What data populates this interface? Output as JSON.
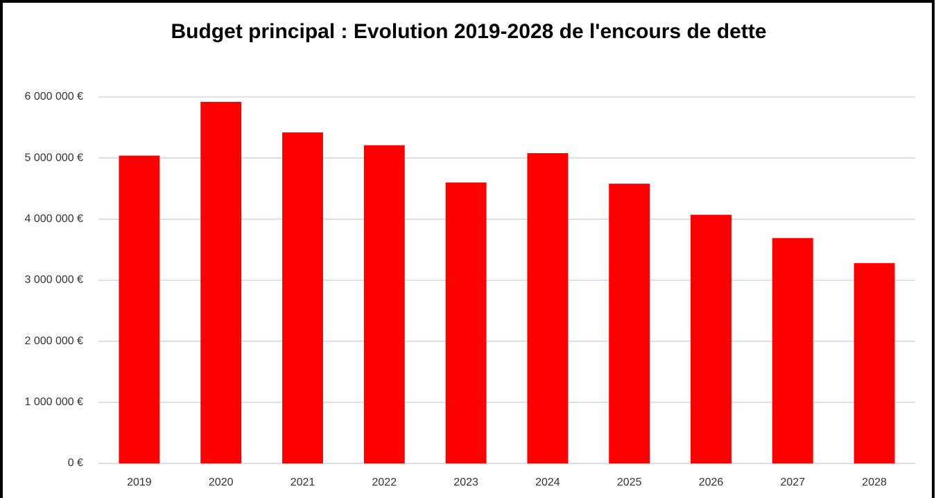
{
  "chart_data": {
    "type": "bar",
    "title": "Budget principal : Evolution 2019-2028 de l'encours de dette",
    "categories": [
      "2019",
      "2020",
      "2021",
      "2022",
      "2023",
      "2024",
      "2025",
      "2026",
      "2027",
      "2028"
    ],
    "values": [
      5040000,
      5920000,
      5420000,
      5210000,
      4600000,
      5080000,
      4580000,
      4070000,
      3690000,
      3280000
    ],
    "color": "#ff0000",
    "ylim": [
      0,
      6000000
    ],
    "yticks": [
      {
        "value": 0,
        "label": "0 €"
      },
      {
        "value": 1000000,
        "label": "1 000 000 €"
      },
      {
        "value": 2000000,
        "label": "2 000 000 €"
      },
      {
        "value": 3000000,
        "label": "3 000 000 €"
      },
      {
        "value": 4000000,
        "label": "4 000 000 €"
      },
      {
        "value": 5000000,
        "label": "5 000 000 €"
      },
      {
        "value": 6000000,
        "label": "6 000 000 €"
      }
    ],
    "grid": true
  }
}
